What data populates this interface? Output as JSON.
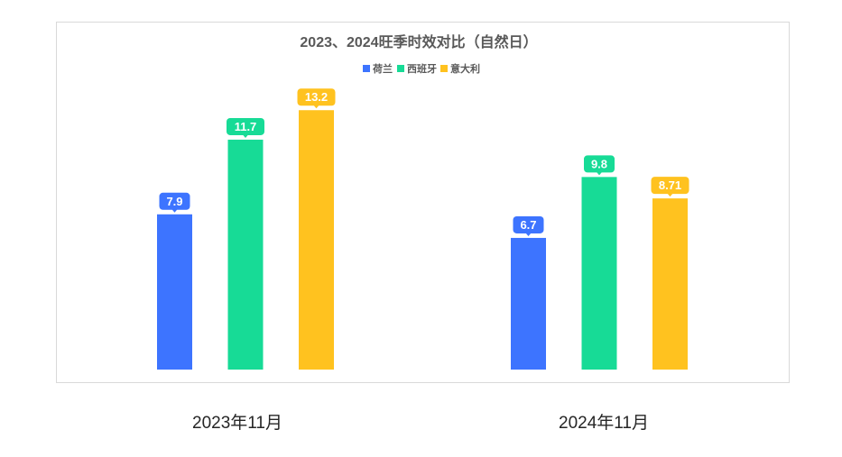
{
  "chart_data": {
    "type": "bar",
    "title": "2023、2024旺季时效对比（自然日）",
    "categories": [
      "2023年11月",
      "2024年11月"
    ],
    "series": [
      {
        "name": "荷兰",
        "color": "#3D74FF",
        "values": [
          7.9,
          6.7
        ],
        "labels": [
          "7.9",
          "6.7"
        ]
      },
      {
        "name": "西班牙",
        "color": "#17DB96",
        "values": [
          11.7,
          9.8
        ],
        "labels": [
          "11.7",
          "9.8"
        ]
      },
      {
        "name": "意大利",
        "color": "#FFC21F",
        "values": [
          13.2,
          8.71
        ],
        "labels": [
          "13.2",
          "8.71"
        ]
      }
    ],
    "legend_position": "top-center",
    "grid": false,
    "ylim": [
      0,
      15
    ]
  }
}
